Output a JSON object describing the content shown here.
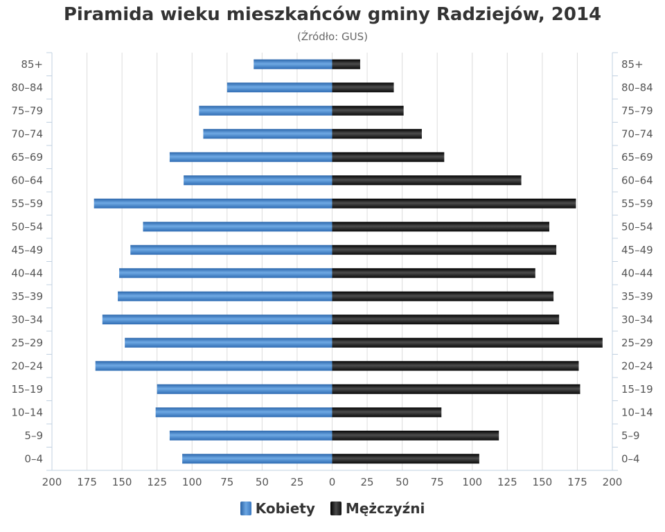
{
  "chart_data": {
    "type": "bar",
    "orientation": "horizontal",
    "title": "Piramida wieku mieszkańców gminy Radziejów, 2014",
    "subtitle": "(Źródło: GUS)",
    "categories": [
      "85+",
      "80–84",
      "75–79",
      "70–74",
      "65–69",
      "60–64",
      "55–59",
      "50–54",
      "45–49",
      "40–44",
      "35–39",
      "30–34",
      "25–29",
      "20–24",
      "15–19",
      "10–14",
      "5–9",
      "0–4"
    ],
    "series": [
      {
        "name": "Kobiety",
        "side": "left",
        "color": "#3b7bc4",
        "values": [
          56,
          75,
          95,
          92,
          116,
          106,
          170,
          135,
          144,
          152,
          153,
          164,
          148,
          169,
          125,
          126,
          116,
          107
        ]
      },
      {
        "name": "Mężczyźni",
        "side": "right",
        "color": "#111111",
        "values": [
          20,
          44,
          51,
          64,
          80,
          135,
          174,
          155,
          160,
          145,
          158,
          162,
          193,
          176,
          177,
          78,
          119,
          105
        ]
      }
    ],
    "xticks": [
      "200",
      "175",
      "150",
      "125",
      "100",
      "75",
      "50",
      "25",
      "0",
      "25",
      "50",
      "75",
      "100",
      "125",
      "150",
      "175",
      "200"
    ],
    "xlim": [
      -200,
      200
    ],
    "grid": true,
    "legend_position": "bottom-center"
  }
}
